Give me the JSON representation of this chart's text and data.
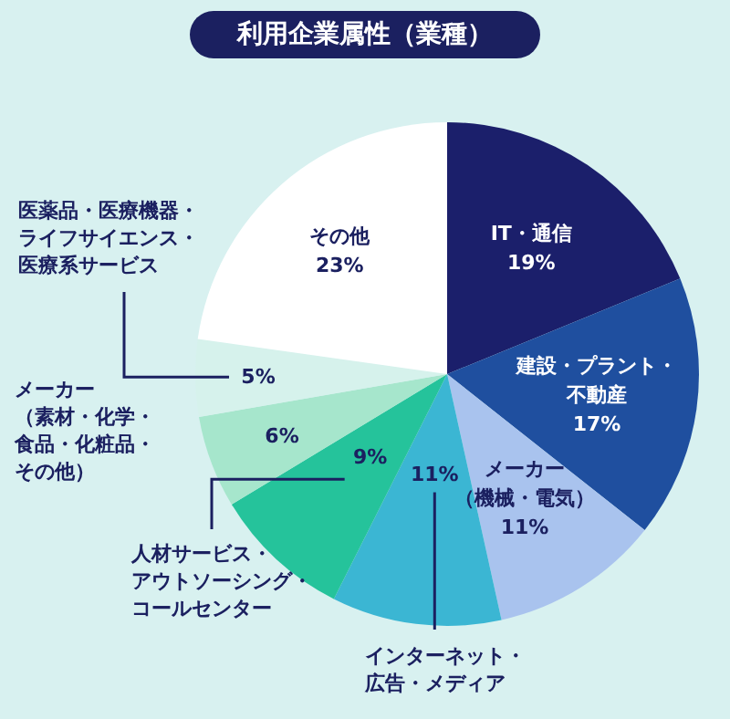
{
  "chart_data": {
    "type": "pie",
    "title": "利用企業属性（業種）",
    "categories": [
      "IT・通信",
      "建設・プラント・不動産",
      "メーカー（機械・電気）",
      "インターネット・広告・メディア",
      "人材サービス・アウトソーシング・コールセンター",
      "メーカー（素材・化学・食品・化粧品・その他）",
      "医薬品・医療機器・ライフサイエンス・医療系サービス",
      "その他"
    ],
    "values": [
      19,
      17,
      11,
      11,
      9,
      6,
      5,
      23
    ],
    "value_labels": [
      "19%",
      "17%",
      "11%",
      "11%",
      "9%",
      "6%",
      "5%",
      "23%"
    ],
    "colors": [
      "#1b1f6b",
      "#1f4f9f",
      "#a9c3ee",
      "#3bb6d3",
      "#25c39b",
      "#a6e6cc",
      "#d6f2ec",
      "#ffffff"
    ]
  }
}
